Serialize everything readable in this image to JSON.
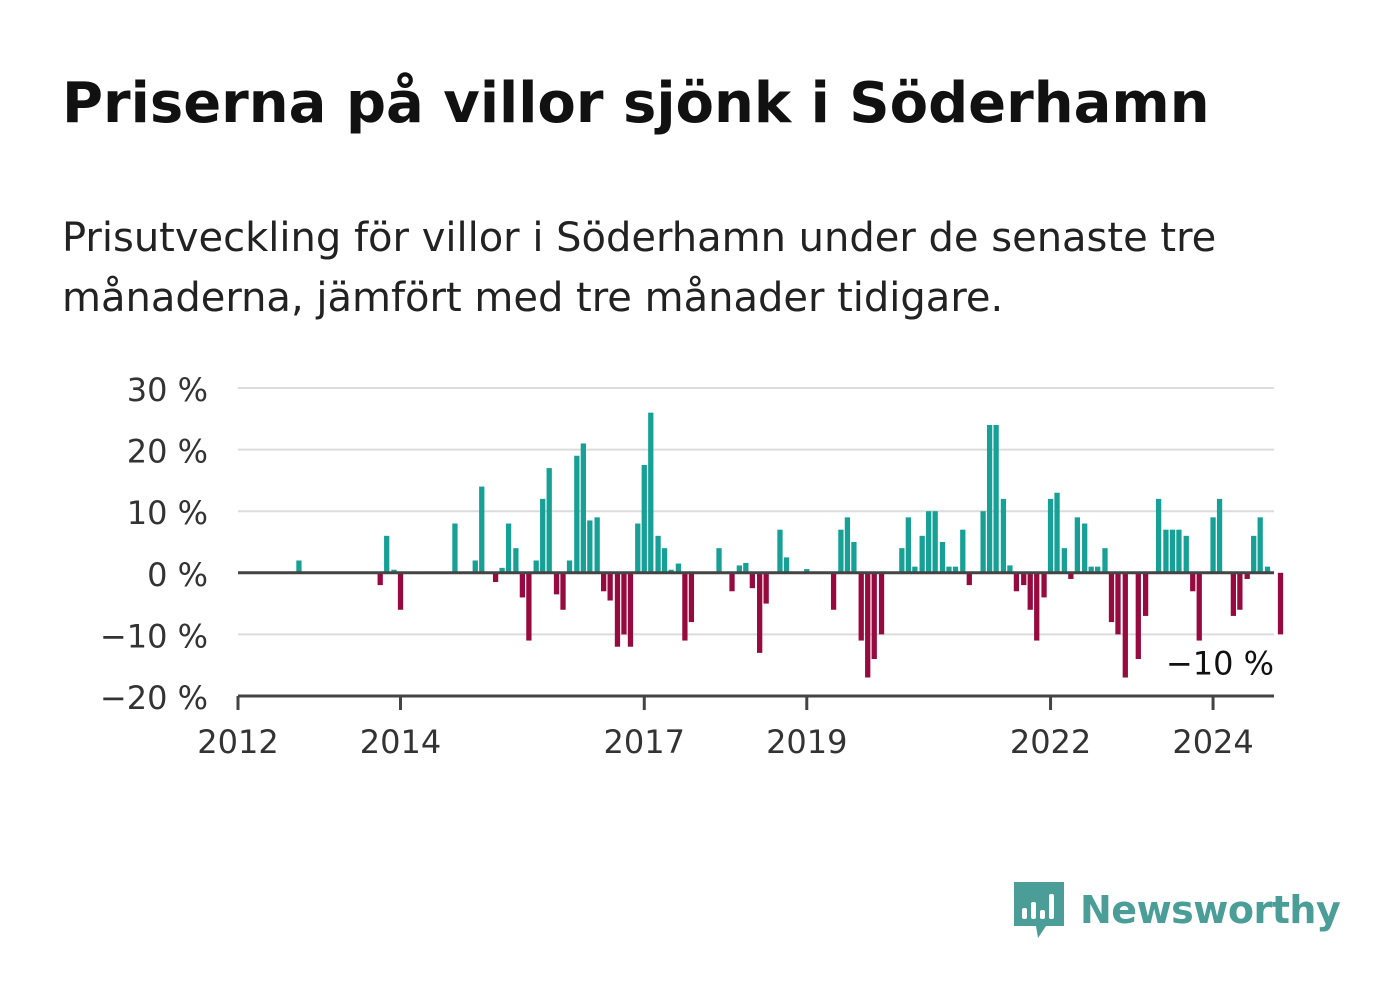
{
  "title": "Priserna på villor sjönk i Söderhamn",
  "subtitle": "Prisutveckling för villor i Söderhamn under de senaste tre månaderna, jämfört med tre månader tidigare.",
  "brand": {
    "name": "Newsworthy",
    "icon": "newsworthy-logo-icon",
    "color": "#4a9e97"
  },
  "chart_data": {
    "type": "bar",
    "x_start": 2012.0,
    "x_step": 0.0833,
    "ylim": [
      -20,
      30
    ],
    "xlim": [
      2012,
      2024.75
    ],
    "yticks": [
      30,
      20,
      10,
      0,
      -10,
      -20
    ],
    "ytick_labels": [
      "30 %",
      "20 %",
      "10 %",
      "0 %",
      "−10 %",
      "−20 %"
    ],
    "xticks": [
      2012,
      2014,
      2017,
      2019,
      2022,
      2024
    ],
    "xtick_labels": [
      "2012",
      "2014",
      "2017",
      "2019",
      "2022",
      "2024"
    ],
    "positive_color": "#16a096",
    "negative_color": "#970a3f",
    "grid": true,
    "last_value_label": "−10 %",
    "values": [
      0,
      0,
      0,
      0,
      0,
      0,
      0,
      0,
      0,
      0,
      0,
      0,
      0,
      0,
      0,
      0,
      0,
      0,
      0,
      0,
      0,
      0,
      0,
      0,
      0,
      0,
      0,
      0,
      0,
      0,
      0,
      0,
      0,
      0,
      0,
      0,
      0,
      0,
      0,
      0,
      0,
      0,
      0,
      0,
      0,
      0,
      0,
      0,
      0,
      0,
      0,
      0,
      0,
      0,
      0,
      0,
      0,
      0,
      0,
      0,
      0,
      0,
      0,
      0,
      0,
      0,
      0,
      0,
      0,
      0,
      0,
      0,
      0,
      0,
      0,
      0,
      0,
      0,
      0,
      0,
      0,
      0,
      0,
      0,
      0,
      0,
      0,
      0,
      0,
      0,
      0,
      0,
      0,
      0,
      0,
      0,
      0,
      0,
      0,
      0,
      0,
      0,
      0,
      0,
      0,
      0,
      0,
      0,
      0,
      0,
      0,
      0,
      0,
      0,
      0,
      0,
      0,
      0,
      0,
      0,
      0,
      0,
      0,
      0,
      0,
      0,
      0,
      0,
      0,
      0,
      0,
      0,
      0,
      0,
      0,
      0,
      0,
      0,
      0,
      0,
      0,
      0,
      0,
      0,
      0,
      0,
      0,
      0,
      0,
      0,
      0,
      0,
      0,
      0
    ],
    "bars": [
      [
        2012.75,
        2
      ],
      [
        2013.75,
        -2
      ],
      [
        2013.83,
        6
      ],
      [
        2013.92,
        0.5
      ],
      [
        2014.0,
        -6
      ],
      [
        2014.67,
        8
      ],
      [
        2014.92,
        2
      ],
      [
        2015.0,
        14
      ],
      [
        2015.17,
        -1.5
      ],
      [
        2015.25,
        0.8
      ],
      [
        2015.33,
        8
      ],
      [
        2015.42,
        4
      ],
      [
        2015.5,
        -4
      ],
      [
        2015.58,
        -11
      ],
      [
        2015.67,
        2
      ],
      [
        2015.75,
        12
      ],
      [
        2015.83,
        17
      ],
      [
        2015.92,
        -3.5
      ],
      [
        2016.0,
        -6
      ],
      [
        2016.08,
        2
      ],
      [
        2016.17,
        19
      ],
      [
        2016.25,
        21
      ],
      [
        2016.33,
        8.5
      ],
      [
        2016.42,
        9
      ],
      [
        2016.5,
        -3
      ],
      [
        2016.58,
        -4.5
      ],
      [
        2016.67,
        -12
      ],
      [
        2016.75,
        -10
      ],
      [
        2016.83,
        -12
      ],
      [
        2016.92,
        8
      ],
      [
        2017.0,
        17.5
      ],
      [
        2017.08,
        26
      ],
      [
        2017.17,
        6
      ],
      [
        2017.25,
        4
      ],
      [
        2017.33,
        0.5
      ],
      [
        2017.42,
        1.5
      ],
      [
        2017.5,
        -11
      ],
      [
        2017.58,
        -8
      ],
      [
        2017.92,
        4
      ],
      [
        2018.08,
        -3
      ],
      [
        2018.17,
        1.2
      ],
      [
        2018.25,
        1.6
      ],
      [
        2018.33,
        -2.5
      ],
      [
        2018.42,
        -13
      ],
      [
        2018.5,
        -5
      ],
      [
        2018.67,
        7
      ],
      [
        2018.75,
        2.5
      ],
      [
        2019.0,
        0.6
      ],
      [
        2019.33,
        -6
      ],
      [
        2019.42,
        7
      ],
      [
        2019.5,
        9
      ],
      [
        2019.58,
        5
      ],
      [
        2019.67,
        -11
      ],
      [
        2019.75,
        -17
      ],
      [
        2019.83,
        -14
      ],
      [
        2019.92,
        -10
      ],
      [
        2020.17,
        4
      ],
      [
        2020.25,
        9
      ],
      [
        2020.33,
        1
      ],
      [
        2020.42,
        6
      ],
      [
        2020.5,
        10
      ],
      [
        2020.58,
        10
      ],
      [
        2020.67,
        5
      ],
      [
        2020.75,
        1
      ],
      [
        2020.83,
        1
      ],
      [
        2020.92,
        7
      ],
      [
        2021.0,
        -2
      ],
      [
        2021.17,
        10
      ],
      [
        2021.25,
        24
      ],
      [
        2021.33,
        24
      ],
      [
        2021.42,
        12
      ],
      [
        2021.5,
        1.2
      ],
      [
        2021.58,
        -3
      ],
      [
        2021.67,
        -2
      ],
      [
        2021.75,
        -6
      ],
      [
        2021.83,
        -11
      ],
      [
        2021.92,
        -4
      ],
      [
        2022.0,
        12
      ],
      [
        2022.08,
        13
      ],
      [
        2022.17,
        4
      ],
      [
        2022.25,
        -1
      ],
      [
        2022.33,
        9
      ],
      [
        2022.42,
        8
      ],
      [
        2022.5,
        1
      ],
      [
        2022.58,
        1
      ],
      [
        2022.67,
        4
      ],
      [
        2022.75,
        -8
      ],
      [
        2022.83,
        -10
      ],
      [
        2022.92,
        -17
      ],
      [
        2023.08,
        -14
      ],
      [
        2023.17,
        -7
      ],
      [
        2023.33,
        12
      ],
      [
        2023.42,
        7
      ],
      [
        2023.5,
        7
      ],
      [
        2023.58,
        7
      ],
      [
        2023.67,
        6
      ],
      [
        2023.75,
        -3
      ],
      [
        2023.83,
        -11
      ],
      [
        2024.0,
        9
      ],
      [
        2024.08,
        12
      ],
      [
        2024.25,
        -7
      ],
      [
        2024.33,
        -6
      ],
      [
        2024.42,
        -1
      ],
      [
        2024.5,
        6
      ],
      [
        2024.58,
        9
      ],
      [
        2024.67,
        1
      ],
      [
        2024.83,
        -10
      ]
    ]
  }
}
